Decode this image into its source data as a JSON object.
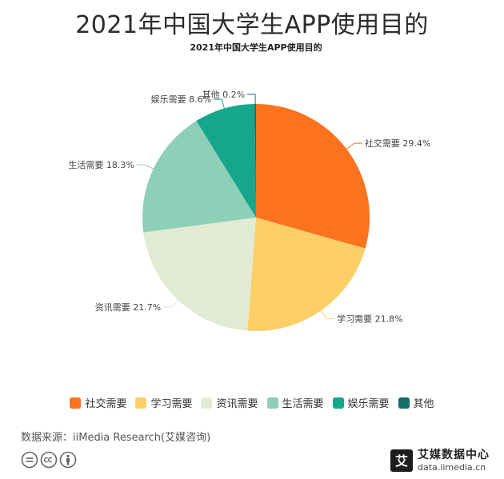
{
  "page": {
    "main_title": "2021年中国大学生APP使用目的",
    "source": "数据来源：iiMedia Research(艾媒咨询)",
    "brand_name": "艾媒数据中心",
    "brand_url": "data.iimedia.cn",
    "brand_logo_char": "艾"
  },
  "chart_data": {
    "type": "pie",
    "title": "2021年中国大学生APP使用目的",
    "categories": [
      "社交需要",
      "学习需要",
      "资讯需要",
      "生活需要",
      "娱乐需要",
      "其他"
    ],
    "values": [
      29.4,
      21.8,
      21.7,
      18.3,
      8.6,
      0.2
    ],
    "unit": "%",
    "colors": [
      "#fb721f",
      "#fdcf67",
      "#e2ead4",
      "#8ecfb8",
      "#15a68c",
      "#136d68"
    ],
    "legend_position": "bottom",
    "start_angle_deg": 0,
    "direction": "clockwise"
  }
}
